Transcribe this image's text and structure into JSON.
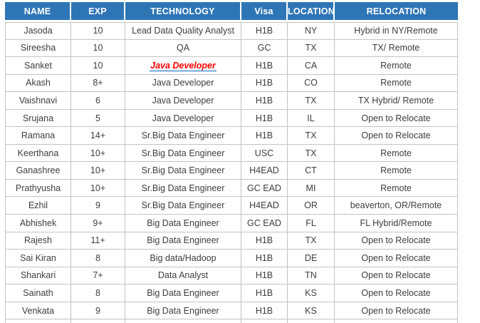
{
  "colors": {
    "header_bg": "#2E75B6",
    "header_text": "#FFFFFF",
    "grid_border": "#C3C3C3",
    "cell_text": "#3D3D3D",
    "highlight_text": "#FF0000",
    "highlight_underline": "#0563C1"
  },
  "table": {
    "columns": [
      "NAME",
      "EXP",
      "TECHNOLOGY",
      "Visa",
      "LOCATION",
      "RELOCATION"
    ],
    "rows": [
      {
        "name": "Jasoda",
        "exp": "10",
        "technology": "Lead Data Quality Analyst",
        "visa": "H1B",
        "location": "NY",
        "relocation": "Hybrid in NY/Remote",
        "technology_highlighted": false
      },
      {
        "name": "Sireesha",
        "exp": "10",
        "technology": "QA",
        "visa": "GC",
        "location": "TX",
        "relocation": "TX/ Remote",
        "technology_highlighted": false
      },
      {
        "name": "Sanket",
        "exp": "10",
        "technology": "Java Developer",
        "visa": "H1B",
        "location": "CA",
        "relocation": "Remote",
        "technology_highlighted": true
      },
      {
        "name": "Akash",
        "exp": "8+",
        "technology": "Java Developer",
        "visa": "H1B",
        "location": "CO",
        "relocation": "Remote",
        "technology_highlighted": false
      },
      {
        "name": "Vaishnavi",
        "exp": "6",
        "technology": "Java Developer",
        "visa": "H1B",
        "location": "TX",
        "relocation": "TX Hybrid/ Remote",
        "technology_highlighted": false
      },
      {
        "name": "Srujana",
        "exp": "5",
        "technology": "Java Developer",
        "visa": "H1B",
        "location": "IL",
        "relocation": "Open to Relocate",
        "technology_highlighted": false
      },
      {
        "name": "Ramana",
        "exp": "14+",
        "technology": "Sr.Big Data Engineer",
        "visa": "H1B",
        "location": "TX",
        "relocation": "Open to Relocate",
        "technology_highlighted": false
      },
      {
        "name": "Keerthana",
        "exp": "10+",
        "technology": "Sr.Big Data Engineer",
        "visa": "USC",
        "location": "TX",
        "relocation": "Remote",
        "technology_highlighted": false
      },
      {
        "name": "Ganashree",
        "exp": "10+",
        "technology": "Sr.Big Data Engineer",
        "visa": "H4EAD",
        "location": "CT",
        "relocation": "Remote",
        "technology_highlighted": false
      },
      {
        "name": "Prathyusha",
        "exp": "10+",
        "technology": "Sr.Big Data Engineer",
        "visa": "GC EAD",
        "location": "MI",
        "relocation": "Remote",
        "technology_highlighted": false
      },
      {
        "name": "Ezhil",
        "exp": "9",
        "technology": "Sr.Big Data Engineer",
        "visa": "H4EAD",
        "location": "OR",
        "relocation": "beaverton, OR/Remote",
        "technology_highlighted": false
      },
      {
        "name": "Abhishek",
        "exp": "9+",
        "technology": "Big Data Engineer",
        "visa": "GC EAD",
        "location": "FL",
        "relocation": "FL Hybrid/Remote",
        "technology_highlighted": false
      },
      {
        "name": "Rajesh",
        "exp": "11+",
        "technology": "Big Data Engineer",
        "visa": "H1B",
        "location": "TX",
        "relocation": "Open to Relocate",
        "technology_highlighted": false
      },
      {
        "name": "Sai Kiran",
        "exp": "8",
        "technology": "Big data/Hadoop",
        "visa": "H1B",
        "location": "DE",
        "relocation": "Open to Relocate",
        "technology_highlighted": false
      },
      {
        "name": "Shankari",
        "exp": "7+",
        "technology": "Data Analyst",
        "visa": "H1B",
        "location": "TN",
        "relocation": "Open to Relocate",
        "technology_highlighted": false
      },
      {
        "name": "Sainath",
        "exp": "8",
        "technology": "Big Data Engineer",
        "visa": "H1B",
        "location": "KS",
        "relocation": "Open to Relocate",
        "technology_highlighted": false
      },
      {
        "name": "Venkata",
        "exp": "9",
        "technology": "Big Data Engineer",
        "visa": "H1B",
        "location": "KS",
        "relocation": "Open to Relocate",
        "technology_highlighted": false
      }
    ]
  }
}
